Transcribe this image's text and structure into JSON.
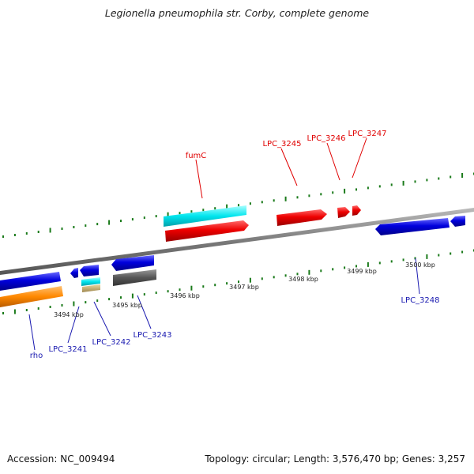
{
  "title": "Legionella pneumophila str. Corby, complete genome",
  "footer": {
    "accession": "Accession: NC_009494",
    "summary": "Topology: circular; Length: 3,576,470 bp; Genes: 3,257"
  },
  "colors": {
    "backbone": "#808080",
    "forward_cds": "#ee0000",
    "reverse_cds": "#0000dd",
    "gene_cyan": "#00e5ee",
    "rrna_orange": "#ff8800",
    "gene_gray": "#555555",
    "gene_tan": "#c8b070",
    "tick": "#1a7a1a",
    "forward_label": "#e00000",
    "reverse_label": "#1a1ab0"
  },
  "scale": {
    "labels": [
      "3494 kbp",
      "3495 kbp",
      "3496 kbp",
      "3497 kbp",
      "3498 kbp",
      "3499 kbp",
      "3500 kbp"
    ]
  },
  "labels": {
    "fumC": "fumC",
    "lpc3245": "LPC_3245",
    "lpc3246": "LPC_3246",
    "lpc3247": "LPC_3247",
    "rho": "rho",
    "lpc3241": "LPC_3241",
    "lpc3242": "LPC_3242",
    "lpc3243": "LPC_3243",
    "lpc3248": "LPC_3248"
  }
}
